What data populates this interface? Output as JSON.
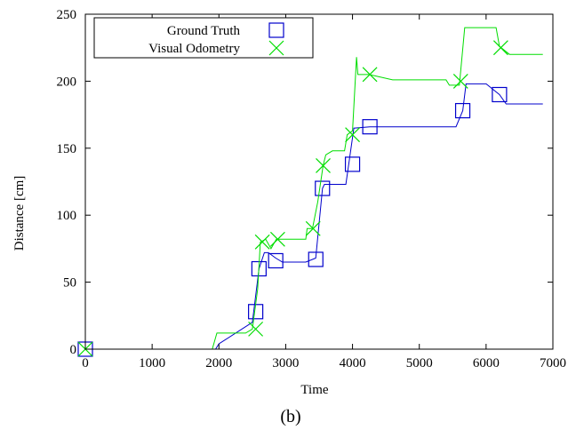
{
  "caption": "(b)",
  "chart_data": {
    "type": "line",
    "xlabel": "Time",
    "ylabel": "Distance [cm]",
    "xlim": [
      0,
      7000
    ],
    "ylim": [
      0,
      250
    ],
    "xticks": [
      0,
      1000,
      2000,
      3000,
      4000,
      5000,
      6000,
      7000
    ],
    "yticks": [
      0,
      50,
      100,
      150,
      200,
      250
    ],
    "legend_position": "top-left",
    "grid": false,
    "series": [
      {
        "name": "Ground Truth",
        "color": "#0000cc",
        "marker": "square",
        "line": [
          [
            0,
            0
          ],
          [
            1950,
            0
          ],
          [
            2000,
            4
          ],
          [
            2500,
            20
          ],
          [
            2600,
            60
          ],
          [
            2680,
            72
          ],
          [
            2740,
            72
          ],
          [
            2850,
            68
          ],
          [
            2950,
            65
          ],
          [
            3300,
            65
          ],
          [
            3450,
            68
          ],
          [
            3550,
            120
          ],
          [
            3580,
            123
          ],
          [
            3900,
            123
          ],
          [
            4020,
            165
          ],
          [
            4260,
            166
          ],
          [
            5550,
            166
          ],
          [
            5650,
            178
          ],
          [
            5700,
            198
          ],
          [
            6000,
            198
          ],
          [
            6200,
            190
          ],
          [
            6300,
            183
          ],
          [
            6850,
            183
          ]
        ],
        "markers": [
          [
            0,
            0
          ],
          [
            2550,
            28
          ],
          [
            2600,
            60
          ],
          [
            2850,
            66
          ],
          [
            3450,
            67
          ],
          [
            3550,
            120
          ],
          [
            4000,
            138
          ],
          [
            4260,
            166
          ],
          [
            5650,
            178
          ],
          [
            6200,
            190
          ]
        ]
      },
      {
        "name": "Visual Odometry",
        "color": "#00dd00",
        "marker": "x",
        "line": [
          [
            0,
            0
          ],
          [
            1900,
            0
          ],
          [
            1970,
            12
          ],
          [
            2400,
            12
          ],
          [
            2500,
            15
          ],
          [
            2580,
            45
          ],
          [
            2620,
            80
          ],
          [
            2700,
            82
          ],
          [
            2780,
            75
          ],
          [
            2860,
            82
          ],
          [
            3300,
            82
          ],
          [
            3320,
            90
          ],
          [
            3400,
            90
          ],
          [
            3480,
            110
          ],
          [
            3560,
            137
          ],
          [
            3600,
            145
          ],
          [
            3700,
            148
          ],
          [
            3880,
            148
          ],
          [
            3920,
            160
          ],
          [
            4000,
            163
          ],
          [
            4060,
            218
          ],
          [
            4080,
            205
          ],
          [
            4250,
            205
          ],
          [
            4600,
            201
          ],
          [
            5400,
            201
          ],
          [
            5450,
            197
          ],
          [
            5600,
            197
          ],
          [
            5680,
            240
          ],
          [
            6150,
            240
          ],
          [
            6200,
            226
          ],
          [
            6350,
            220
          ],
          [
            6850,
            220
          ]
        ],
        "markers": [
          [
            0,
            0
          ],
          [
            2550,
            15
          ],
          [
            2650,
            80
          ],
          [
            2880,
            82
          ],
          [
            3410,
            90
          ],
          [
            3560,
            137
          ],
          [
            4000,
            160
          ],
          [
            4260,
            205
          ],
          [
            5620,
            200
          ],
          [
            6220,
            225
          ]
        ]
      }
    ]
  }
}
